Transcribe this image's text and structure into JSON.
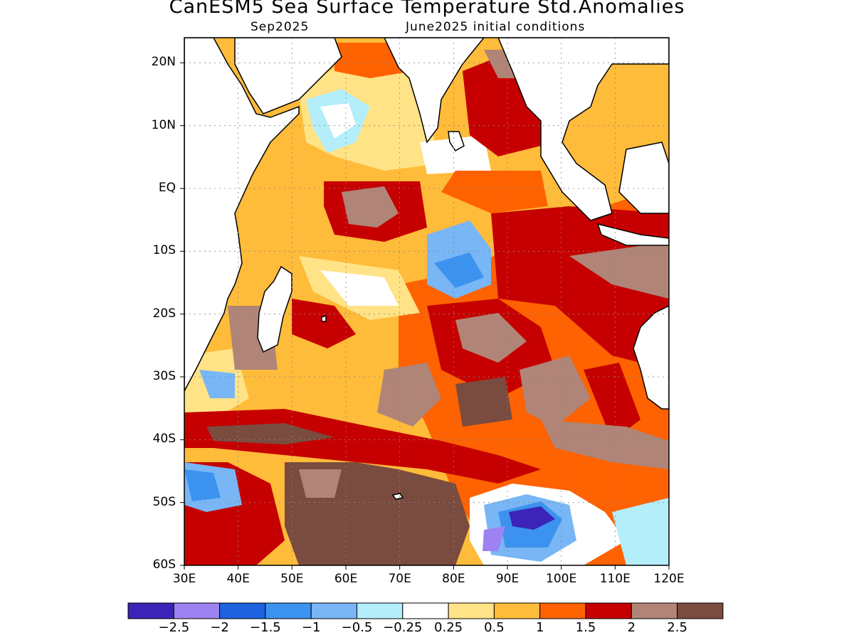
{
  "title": "CanESM5 Sea Surface Temperature Std.Anomalies",
  "subtitle_left": "Sep2025",
  "subtitle_right": "June2025 initial conditions",
  "axes": {
    "lat_labels": [
      "20N",
      "10N",
      "EQ",
      "10S",
      "20S",
      "30S",
      "40S",
      "50S",
      "60S"
    ],
    "lat_values": [
      20,
      10,
      0,
      -10,
      -20,
      -30,
      -40,
      -50,
      -60
    ],
    "lon_labels": [
      "30E",
      "40E",
      "50E",
      "60E",
      "70E",
      "80E",
      "90E",
      "100E",
      "110E",
      "120E"
    ],
    "lon_values": [
      30,
      40,
      50,
      60,
      70,
      80,
      90,
      100,
      110,
      120
    ],
    "lon_range": [
      30,
      120
    ],
    "lat_range": [
      -60,
      24
    ],
    "grid": "dotted"
  },
  "colorbar": {
    "colors": [
      "#3b24b7",
      "#9d83f2",
      "#1e62e0",
      "#3c93ef",
      "#78b6f6",
      "#b3eefa",
      "#ffffff",
      "#ffe386",
      "#ffbb3a",
      "#ff6200",
      "#c60000",
      "#b08577",
      "#7a4b3f"
    ],
    "labels": [
      "−2.5",
      "−2",
      "−1.5",
      "−1",
      "−0.5",
      "−0.25",
      "0.25",
      "0.5",
      "1",
      "1.5",
      "2",
      "2.5"
    ]
  },
  "land_color": "#ffffff",
  "coast_color": "#000000"
}
